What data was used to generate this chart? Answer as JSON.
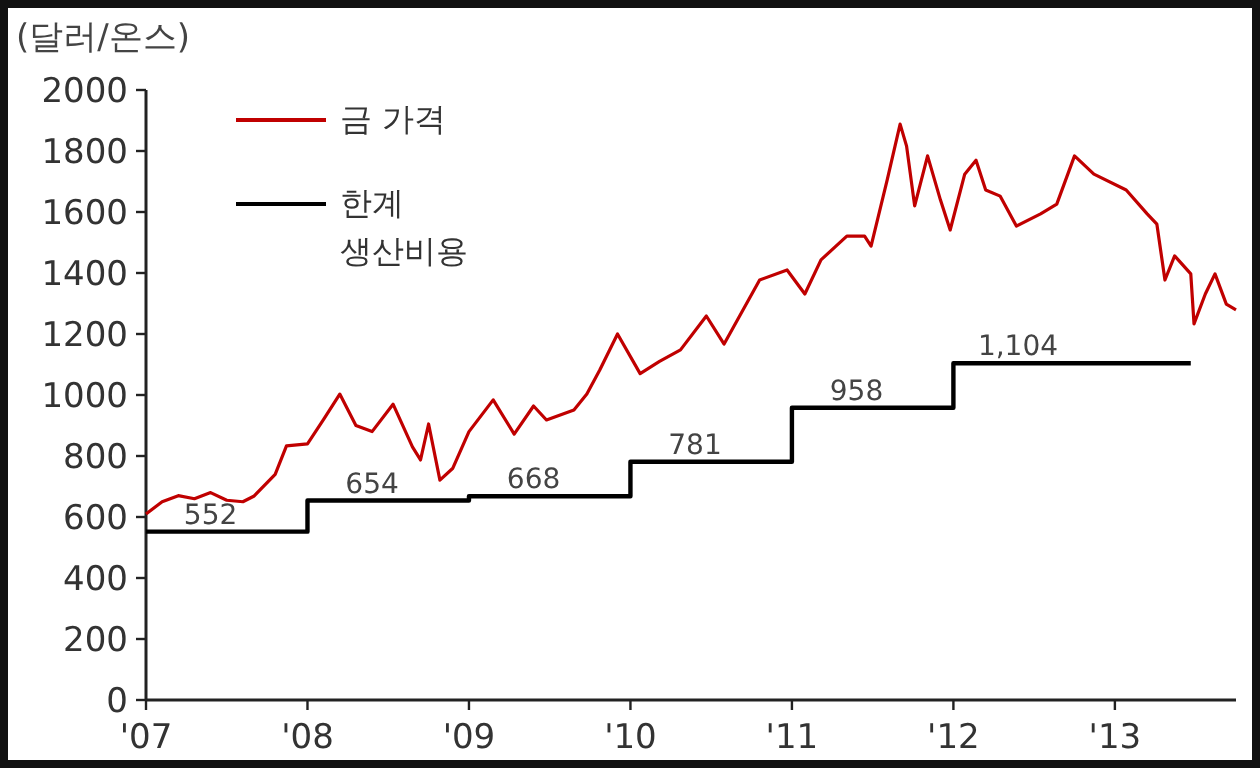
{
  "chart_data": {
    "type": "line",
    "ylabel": "(달러/온스)",
    "xlim": [
      2007,
      2013.75
    ],
    "ylim": [
      0,
      2000
    ],
    "xticks": [
      {
        "value": 2007,
        "label": "'07"
      },
      {
        "value": 2008,
        "label": "'08"
      },
      {
        "value": 2009,
        "label": "'09"
      },
      {
        "value": 2010,
        "label": "'10"
      },
      {
        "value": 2011,
        "label": "'11"
      },
      {
        "value": 2012,
        "label": "'12"
      },
      {
        "value": 2013,
        "label": "'13"
      }
    ],
    "yticks": [
      0,
      200,
      400,
      600,
      800,
      1000,
      1200,
      1400,
      1600,
      1800,
      2000
    ],
    "legend": "top left",
    "grid": false,
    "series": [
      {
        "name": "금 가격",
        "type": "line",
        "color": "#c00000",
        "x": [
          2007,
          2007.1,
          2007.2,
          2007.3,
          2007.4,
          2007.5,
          2007.6,
          2007.67,
          2007.8,
          2007.87,
          2008,
          2008.1,
          2008.2,
          2008.3,
          2008.4,
          2008.53,
          2008.65,
          2008.7,
          2008.75,
          2008.82,
          2008.9,
          2009,
          2009.15,
          2009.28,
          2009.4,
          2009.48,
          2009.65,
          2009.73,
          2009.81,
          2009.92,
          2010.06,
          2010.18,
          2010.31,
          2010.47,
          2010.58,
          2010.8,
          2010.97,
          2011.08,
          2011.18,
          2011.34,
          2011.45,
          2011.49,
          2011.59,
          2011.67,
          2011.71,
          2011.76,
          2011.84,
          2011.92,
          2011.98,
          2012.07,
          2012.14,
          2012.2,
          2012.29,
          2012.39,
          2012.54,
          2012.64,
          2012.75,
          2012.87,
          2013.07,
          2013.2,
          2013.26,
          2013.31,
          2013.37,
          2013.47,
          2013.49,
          2013.56,
          2013.62,
          2013.69,
          2013.75
        ],
        "values": [
          610,
          650,
          670,
          660,
          680,
          655,
          650,
          669,
          740,
          833,
          840,
          920,
          1003,
          900,
          880,
          970,
          830,
          787,
          905,
          721,
          760,
          880,
          984,
          872,
          964,
          918,
          951,
          1003,
          1082,
          1200,
          1070,
          1110,
          1148,
          1259,
          1167,
          1377,
          1410,
          1331,
          1443,
          1521,
          1521,
          1488,
          1705,
          1888,
          1816,
          1620,
          1784,
          1639,
          1541,
          1724,
          1770,
          1672,
          1652,
          1554,
          1594,
          1626,
          1784,
          1724,
          1672,
          1594,
          1560,
          1377,
          1456,
          1397,
          1233,
          1331,
          1397,
          1298,
          1279
        ]
      },
      {
        "name": "한계 생산비용",
        "type": "step",
        "color": "#000000",
        "x": [
          2007,
          2008,
          2009,
          2010,
          2011,
          2012,
          2013.47
        ],
        "values": [
          552,
          654,
          668,
          781,
          958,
          1104,
          1104
        ],
        "value_labels": [
          "552",
          "654",
          "668",
          "781",
          "958",
          "1,104",
          null
        ]
      }
    ]
  }
}
